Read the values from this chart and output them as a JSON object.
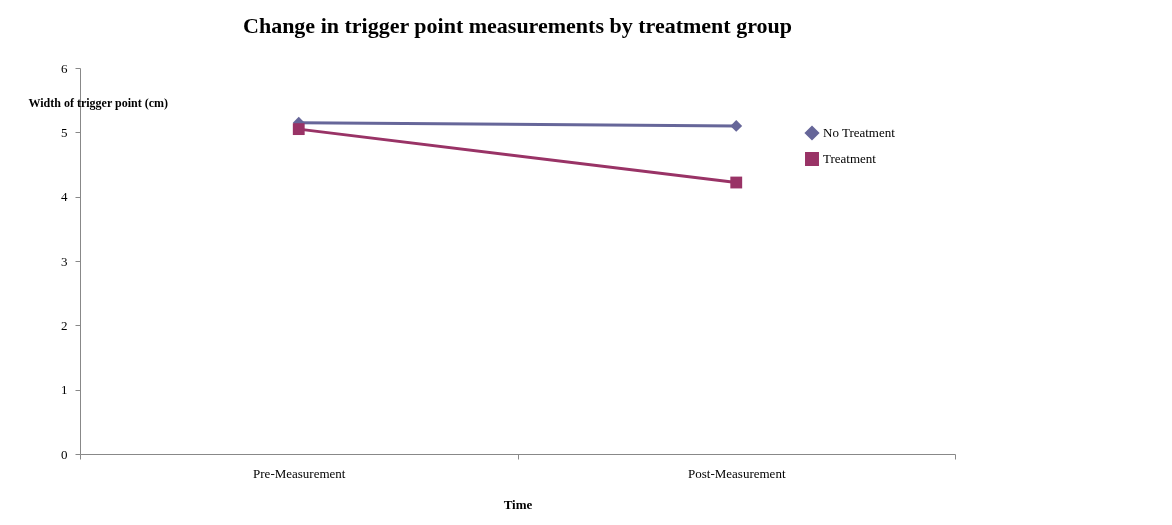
{
  "chart_data": {
    "type": "line",
    "title": "Change in trigger point measurements by treatment group",
    "xlabel": "Time",
    "ylabel": "Width of trigger point (cm)",
    "categories": [
      "Pre-Measurement",
      "Post-Measurement"
    ],
    "series": [
      {
        "name": "No Treatment",
        "color": "#666699",
        "marker": "diamond",
        "values": [
          5.15,
          5.1
        ]
      },
      {
        "name": "Treatment",
        "color": "#993366",
        "marker": "square",
        "values": [
          5.05,
          4.22
        ]
      }
    ],
    "ylim": [
      0,
      6
    ],
    "yticks": [
      0,
      1,
      2,
      3,
      4,
      5,
      6
    ],
    "grid": false,
    "legend": "right",
    "line_style": "solid"
  }
}
